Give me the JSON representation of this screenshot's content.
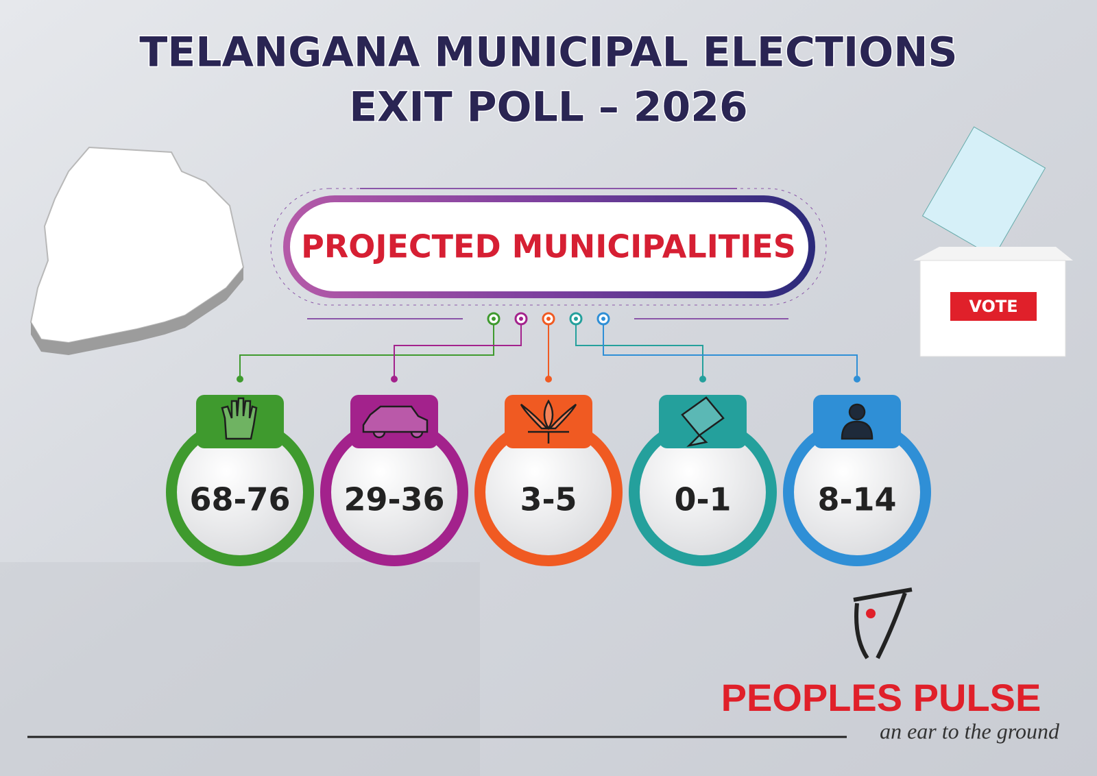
{
  "header": {
    "title_lines": [
      "TELANGANA MUNICIPAL ELECTIONS",
      "EXIT POLL – 2026"
    ]
  },
  "banner": {
    "label": "PROJECTED MUNICIPALITIES"
  },
  "parties": [
    {
      "seats": "68-76",
      "color": "#3f9a2e"
    },
    {
      "seats": "29-36",
      "color": "#a3228c"
    },
    {
      "seats": "3-5",
      "color": "#f05a22"
    },
    {
      "seats": "0-1",
      "color": "#24a09c"
    },
    {
      "seats": "8-14",
      "color": "#2f8fd6"
    }
  ],
  "ballot_box": {
    "label": "VOTE"
  },
  "brand": {
    "name": "PEOPLES PULSE",
    "tagline": "an ear to the ground"
  }
}
